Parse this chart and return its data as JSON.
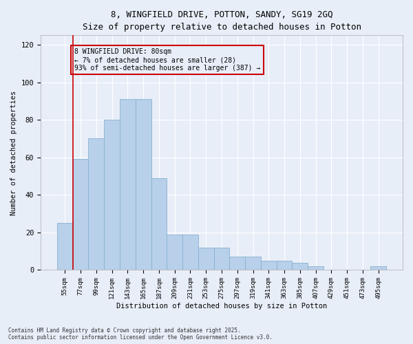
{
  "title1": "8, WINGFIELD DRIVE, POTTON, SANDY, SG19 2GQ",
  "title2": "Size of property relative to detached houses in Potton",
  "xlabel": "Distribution of detached houses by size in Potton",
  "ylabel": "Number of detached properties",
  "categories": [
    "55sqm",
    "77sqm",
    "99sqm",
    "121sqm",
    "143sqm",
    "165sqm",
    "187sqm",
    "209sqm",
    "231sqm",
    "253sqm",
    "275sqm",
    "297sqm",
    "319sqm",
    "341sqm",
    "363sqm",
    "385sqm",
    "407sqm",
    "429sqm",
    "451sqm",
    "473sqm",
    "495sqm"
  ],
  "bar_values": [
    25,
    59,
    70,
    80,
    91,
    91,
    49,
    19,
    19,
    12,
    12,
    7,
    7,
    5,
    5,
    4,
    2,
    0,
    0,
    0,
    2
  ],
  "bar_color": "#b8d0ea",
  "bar_edgecolor": "#88b0d0",
  "vline_x": 0.5,
  "vline_color": "#cc0000",
  "annotation_text": "8 WINGFIELD DRIVE: 80sqm\n← 7% of detached houses are smaller (28)\n93% of semi-detached houses are larger (387) →",
  "annotation_box_color": "#cc0000",
  "ylim": [
    0,
    125
  ],
  "yticks": [
    0,
    20,
    40,
    60,
    80,
    100,
    120
  ],
  "background_color": "#e8eef8",
  "grid_color": "#ffffff",
  "footer": "Contains HM Land Registry data © Crown copyright and database right 2025.\nContains public sector information licensed under the Open Government Licence v3.0."
}
